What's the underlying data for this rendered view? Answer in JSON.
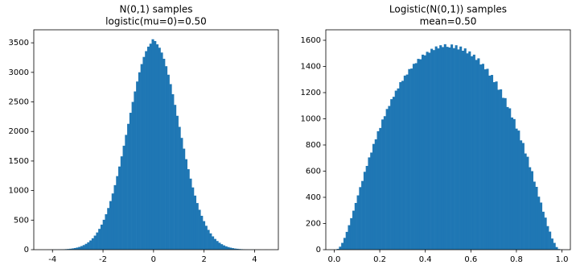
{
  "chart_data": [
    {
      "type": "histogram",
      "title": "N(0,1) samples",
      "subtitle": "logistic(mu=0)=0.50",
      "color": "#1f77b4",
      "bins": [
        -4.3,
        -4.212,
        -4.124,
        -4.036,
        -3.948,
        -3.86,
        -3.772,
        -3.684,
        -3.596,
        -3.508,
        -3.42,
        -3.332,
        -3.244,
        -3.156,
        -3.068,
        -2.98,
        -2.892,
        -2.804,
        -2.716,
        -2.628,
        -2.54,
        -2.452,
        -2.364,
        -2.276,
        -2.188,
        -2.1,
        -2.012,
        -1.924,
        -1.836,
        -1.748,
        -1.66,
        -1.572,
        -1.484,
        -1.396,
        -1.308,
        -1.22,
        -1.132,
        -1.044,
        -0.956,
        -0.868,
        -0.78,
        -0.692,
        -0.604,
        -0.516,
        -0.428,
        -0.34,
        -0.252,
        -0.164,
        -0.076,
        0.012,
        0.1,
        0.188,
        0.276,
        0.364,
        0.452,
        0.54,
        0.628,
        0.716,
        0.804,
        0.892,
        0.98,
        1.068,
        1.156,
        1.244,
        1.332,
        1.42,
        1.508,
        1.596,
        1.684,
        1.772,
        1.86,
        1.948,
        2.036,
        2.124,
        2.212,
        2.3,
        2.388,
        2.476,
        2.564,
        2.652,
        2.74,
        2.828,
        2.916,
        3.004,
        3.092,
        3.18,
        3.268,
        3.356,
        3.444,
        3.532,
        3.62,
        3.708,
        3.796,
        3.884,
        3.972,
        4.06,
        4.148,
        4.236,
        4.324,
        4.412,
        4.5
      ],
      "values": [
        0,
        1,
        1,
        1,
        2,
        2,
        3,
        5,
        6,
        9,
        12,
        16,
        21,
        28,
        36,
        47,
        61,
        78,
        99,
        125,
        156,
        193,
        238,
        291,
        352,
        424,
        506,
        600,
        705,
        822,
        951,
        1092,
        1245,
        1407,
        1579,
        1759,
        1942,
        2129,
        2316,
        2500,
        2677,
        2845,
        3001,
        3140,
        3261,
        3359,
        3435,
        3485,
        3560,
        3530,
        3474,
        3417,
        3335,
        3230,
        3104,
        2960,
        2801,
        2630,
        2450,
        2265,
        2078,
        1891,
        1709,
        1531,
        1362,
        1202,
        1053,
        915,
        789,
        675,
        573,
        483,
        404,
        335,
        276,
        225,
        182,
        147,
        117,
        93,
        73,
        57,
        44,
        34,
        26,
        19,
        15,
        11,
        8,
        6,
        4,
        3,
        2,
        2,
        1,
        1,
        1,
        0,
        0,
        1
      ],
      "xlim": [
        -4.74,
        4.94
      ],
      "xticks": [
        -4,
        -2,
        0,
        2,
        4
      ],
      "ylim": [
        0,
        3720
      ],
      "yticks": [
        0,
        500,
        1000,
        1500,
        2000,
        2500,
        3000,
        3500
      ]
    },
    {
      "type": "histogram",
      "title": "Logistic(N(0,1)) samples",
      "subtitle": "mean=0.50",
      "color": "#1f77b4",
      "bins": [
        0.011,
        0.0208,
        0.0306,
        0.0404,
        0.0502,
        0.06,
        0.0698,
        0.0796,
        0.0894,
        0.0992,
        0.109,
        0.1188,
        0.1286,
        0.1384,
        0.1482,
        0.158,
        0.1678,
        0.1776,
        0.1874,
        0.1972,
        0.207,
        0.2168,
        0.2266,
        0.2364,
        0.2462,
        0.256,
        0.2658,
        0.2756,
        0.2854,
        0.2952,
        0.305,
        0.3148,
        0.3246,
        0.3344,
        0.3442,
        0.354,
        0.3638,
        0.3736,
        0.3834,
        0.3932,
        0.403,
        0.4128,
        0.4226,
        0.4324,
        0.4422,
        0.452,
        0.4618,
        0.4716,
        0.4814,
        0.4912,
        0.501,
        0.5108,
        0.5206,
        0.5304,
        0.5402,
        0.55,
        0.5598,
        0.5696,
        0.5794,
        0.5892,
        0.599,
        0.6088,
        0.6186,
        0.6284,
        0.6382,
        0.648,
        0.6578,
        0.6676,
        0.6774,
        0.6872,
        0.697,
        0.7068,
        0.7166,
        0.7264,
        0.7362,
        0.746,
        0.7558,
        0.7656,
        0.7754,
        0.7852,
        0.795,
        0.8048,
        0.8146,
        0.8244,
        0.8342,
        0.844,
        0.8538,
        0.8636,
        0.8734,
        0.8832,
        0.893,
        0.9028,
        0.9126,
        0.9224,
        0.9322,
        0.942,
        0.9518,
        0.9616,
        0.9714,
        0.9812,
        0.991
      ],
      "values": [
        6,
        23,
        52,
        90,
        136,
        187,
        241,
        298,
        357,
        415,
        478,
        525,
        595,
        640,
        705,
        742,
        808,
        843,
        905,
        930,
        995,
        1020,
        1075,
        1098,
        1150,
        1168,
        1215,
        1232,
        1280,
        1290,
        1330,
        1338,
        1380,
        1384,
        1420,
        1425,
        1458,
        1455,
        1490,
        1485,
        1512,
        1505,
        1535,
        1525,
        1553,
        1538,
        1562,
        1548,
        1570,
        1550,
        1545,
        1568,
        1540,
        1562,
        1530,
        1552,
        1520,
        1538,
        1500,
        1515,
        1478,
        1490,
        1450,
        1462,
        1415,
        1420,
        1378,
        1382,
        1330,
        1335,
        1280,
        1285,
        1222,
        1225,
        1160,
        1158,
        1090,
        1080,
        1010,
        998,
        925,
        910,
        835,
        815,
        735,
        710,
        630,
        600,
        520,
        480,
        405,
        360,
        290,
        245,
        180,
        138,
        85,
        52,
        20,
        5
      ],
      "xlim": [
        -0.037,
        1.037
      ],
      "xticks": [
        {
          "value": 0,
          "label": "0.0"
        },
        0.2,
        0.4,
        0.6,
        0.8,
        {
          "value": 1,
          "label": "1.0"
        }
      ],
      "ylim": [
        0,
        1680
      ],
      "yticks": [
        0,
        200,
        400,
        600,
        800,
        1000,
        1200,
        1400,
        1600
      ]
    }
  ]
}
